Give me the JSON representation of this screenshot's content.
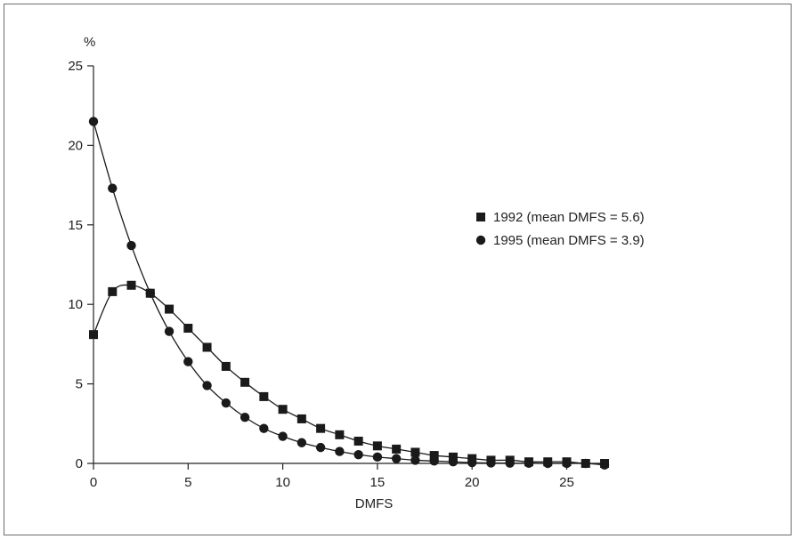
{
  "chart_data": {
    "type": "line",
    "title": "",
    "xlabel": "DMFS",
    "ylabel": "%",
    "xlim": [
      0,
      27
    ],
    "ylim": [
      0,
      25
    ],
    "x_ticks": [
      0,
      5,
      10,
      15,
      20,
      25
    ],
    "y_ticks": [
      0,
      5,
      10,
      15,
      20,
      25
    ],
    "grid": false,
    "legend_position": "right-middle",
    "x": [
      0,
      1,
      2,
      3,
      4,
      5,
      6,
      7,
      8,
      9,
      10,
      11,
      12,
      13,
      14,
      15,
      16,
      17,
      18,
      19,
      20,
      21,
      22,
      23,
      24,
      25,
      26,
      27
    ],
    "series": [
      {
        "name": "1992 (mean DMFS = 5.6)",
        "marker": "square",
        "color": "#1a1a1a",
        "values": [
          8.1,
          10.8,
          11.2,
          10.7,
          9.7,
          8.5,
          7.3,
          6.1,
          5.1,
          4.2,
          3.4,
          2.8,
          2.2,
          1.8,
          1.4,
          1.1,
          0.9,
          0.7,
          0.5,
          0.4,
          0.3,
          0.2,
          0.2,
          0.1,
          0.1,
          0.1,
          0.0,
          0.0
        ]
      },
      {
        "name": "1995 (mean DMFS = 3.9)",
        "marker": "circle",
        "color": "#1a1a1a",
        "values": [
          21.5,
          17.3,
          13.7,
          10.7,
          8.3,
          6.4,
          4.9,
          3.8,
          2.9,
          2.2,
          1.7,
          1.3,
          1.0,
          0.75,
          0.55,
          0.4,
          0.3,
          0.2,
          0.15,
          0.1,
          0.05,
          0.03,
          0.02,
          0.01,
          0.0,
          0.0,
          0.0,
          -0.1
        ]
      }
    ]
  }
}
